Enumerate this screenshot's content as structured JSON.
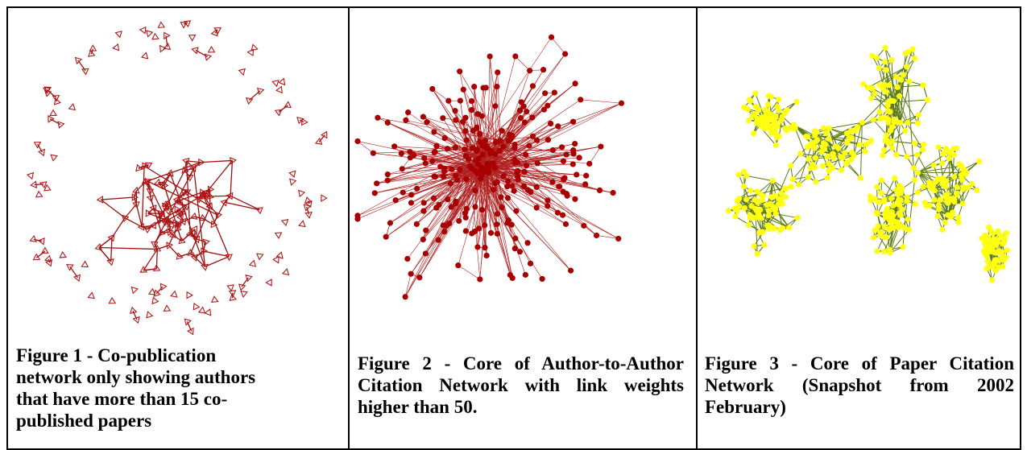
{
  "figures": [
    {
      "caption": "Figure 1 - Co-publication network only showing authors that have more than 15 co-published papers"
    },
    {
      "caption": "Figure 2 - Core of Author-to-Author Citation Network with link weights higher than 50."
    },
    {
      "caption": "Figure 3 - Core of Paper Citation Network (Snapshot from 2002 February)"
    }
  ]
}
